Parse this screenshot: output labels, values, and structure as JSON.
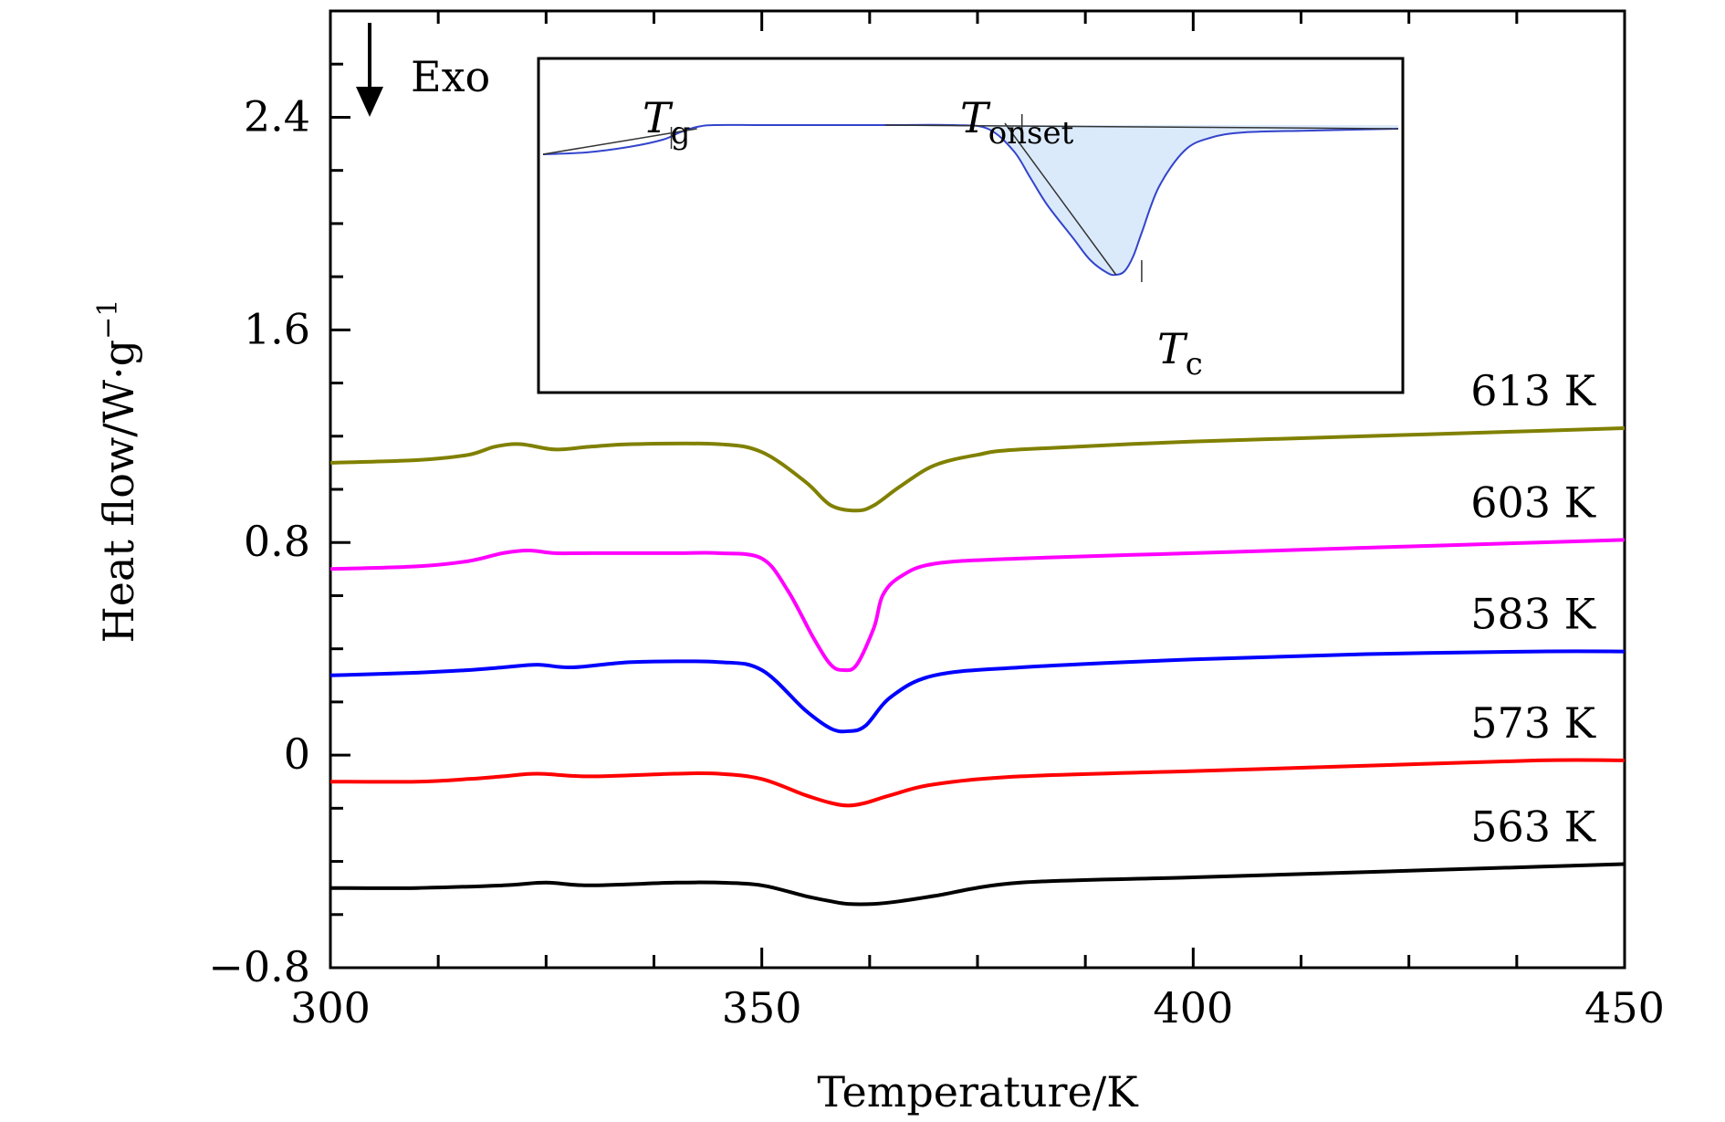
{
  "chart_data": {
    "type": "line",
    "xlabel": "Temperature/K",
    "ylabel": "Heat flow/W·g",
    "ylabel_sup": "−1",
    "xlim": [
      300,
      450
    ],
    "ylim": [
      -0.8,
      2.8
    ],
    "x_ticks": [
      300,
      350,
      400,
      450
    ],
    "x_tick_labels": [
      "300",
      "350",
      "400",
      "450"
    ],
    "y_ticks": [
      -0.8,
      0,
      0.8,
      1.6,
      2.4
    ],
    "y_tick_labels": [
      "−0.8",
      "0",
      "0.8",
      "1.6",
      "2.4"
    ],
    "annotation": "Exo",
    "series": [
      {
        "name": "613 K",
        "color": "#808000",
        "x": [
          300,
          310,
          316,
          319,
          322,
          326,
          330,
          335,
          345,
          350,
          355,
          358,
          361,
          363,
          366,
          370,
          375,
          380,
          400,
          420,
          440,
          450
        ],
        "y": [
          1.1,
          1.11,
          1.13,
          1.16,
          1.17,
          1.15,
          1.16,
          1.17,
          1.17,
          1.14,
          1.03,
          0.94,
          0.92,
          0.94,
          1.01,
          1.09,
          1.13,
          1.15,
          1.18,
          1.2,
          1.22,
          1.23
        ]
      },
      {
        "name": "603 K",
        "color": "#ff00ff",
        "x": [
          300,
          310,
          316,
          320,
          323,
          326,
          330,
          340,
          345,
          350,
          353,
          356,
          358,
          359.5,
          361,
          363,
          364,
          366,
          370,
          380,
          400,
          420,
          440,
          450
        ],
        "y": [
          0.7,
          0.71,
          0.73,
          0.76,
          0.77,
          0.76,
          0.76,
          0.76,
          0.76,
          0.74,
          0.62,
          0.44,
          0.34,
          0.32,
          0.34,
          0.48,
          0.6,
          0.67,
          0.72,
          0.74,
          0.76,
          0.78,
          0.8,
          0.81
        ]
      },
      {
        "name": "583 K",
        "color": "#0000ff",
        "x": [
          300,
          310,
          316,
          320,
          324,
          328,
          335,
          345,
          350,
          355,
          358,
          360,
          362,
          365,
          370,
          380,
          400,
          420,
          440,
          450
        ],
        "y": [
          0.3,
          0.31,
          0.32,
          0.33,
          0.34,
          0.33,
          0.35,
          0.35,
          0.32,
          0.17,
          0.1,
          0.09,
          0.11,
          0.22,
          0.3,
          0.33,
          0.36,
          0.38,
          0.39,
          0.39
        ]
      },
      {
        "name": "573 K",
        "color": "#ff0000",
        "x": [
          300,
          310,
          316,
          320,
          324,
          330,
          340,
          345,
          350,
          355,
          358,
          360,
          362,
          365,
          370,
          380,
          400,
          420,
          440,
          450
        ],
        "y": [
          -0.1,
          -0.1,
          -0.09,
          -0.08,
          -0.07,
          -0.08,
          -0.07,
          -0.07,
          -0.09,
          -0.15,
          -0.18,
          -0.19,
          -0.18,
          -0.15,
          -0.11,
          -0.08,
          -0.06,
          -0.04,
          -0.02,
          -0.02
        ]
      },
      {
        "name": "563 K",
        "color": "#000000",
        "x": [
          300,
          310,
          320,
          325,
          330,
          340,
          345,
          350,
          355,
          358,
          360,
          363,
          366,
          370,
          380,
          400,
          420,
          440,
          450
        ],
        "y": [
          -0.5,
          -0.5,
          -0.49,
          -0.48,
          -0.49,
          -0.48,
          -0.48,
          -0.49,
          -0.53,
          -0.55,
          -0.56,
          -0.56,
          -0.55,
          -0.53,
          -0.48,
          -0.46,
          -0.44,
          -0.42,
          -0.41
        ]
      }
    ],
    "inset": {
      "labels": {
        "tg": "T",
        "tg_sub": "g",
        "tonset": "T",
        "tonset_sub": "onset",
        "tc": "T",
        "tc_sub": "c"
      },
      "curve": {
        "color": "#3344cc",
        "fill": "#dbeafb",
        "x": [
          0,
          5,
          10,
          14,
          16,
          18,
          20,
          25,
          30,
          40,
          48,
          52,
          55,
          57,
          59,
          62,
          64,
          66,
          67,
          68,
          69,
          70,
          72,
          75,
          78,
          82,
          90,
          100
        ],
        "y": [
          0.08,
          0.09,
          0.12,
          0.16,
          0.2,
          0.23,
          0.24,
          0.24,
          0.24,
          0.24,
          0.24,
          0.22,
          0.1,
          -0.05,
          -0.2,
          -0.38,
          -0.5,
          -0.57,
          -0.58,
          -0.56,
          -0.48,
          -0.35,
          -0.1,
          0.1,
          0.17,
          0.2,
          0.21,
          0.22
        ]
      }
    }
  }
}
